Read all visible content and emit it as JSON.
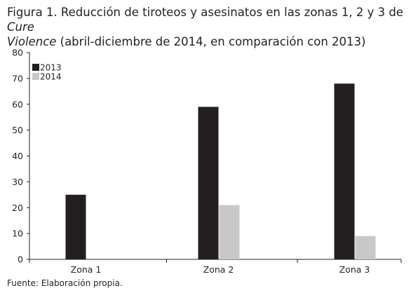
{
  "figure": {
    "title_line1_prefix": "Figura 1. Reducción de tiroteos y asesinatos en las zonas 1, 2 y 3 de ",
    "title_line1_italic": "Cure",
    "title_line2_italic": "Violence",
    "title_line2_suffix": " (abril-diciembre de 2014, en comparación con 2013)",
    "source": "Fuente: Elaboración propia."
  },
  "colors": {
    "series_2013": "#231f20",
    "series_2014": "#c8c8c8",
    "axis": "#231f20"
  },
  "chart_data": {
    "type": "bar",
    "title": "Figura 1. Reducción de tiroteos y asesinatos en las zonas 1, 2 y 3 de Cure Violence (abril-diciembre de 2014, en comparación con 2013)",
    "categories": [
      "Zona 1",
      "Zona 2",
      "Zona 3"
    ],
    "series": [
      {
        "name": "2013",
        "values": [
          25,
          59,
          68
        ]
      },
      {
        "name": "2014",
        "values": [
          0,
          21,
          9
        ]
      }
    ],
    "ylim": [
      0,
      80
    ],
    "yticks": [
      0,
      10,
      20,
      30,
      40,
      50,
      60,
      70,
      80
    ],
    "xlabel": "",
    "ylabel": "",
    "grid": false,
    "legend": "top-left"
  }
}
